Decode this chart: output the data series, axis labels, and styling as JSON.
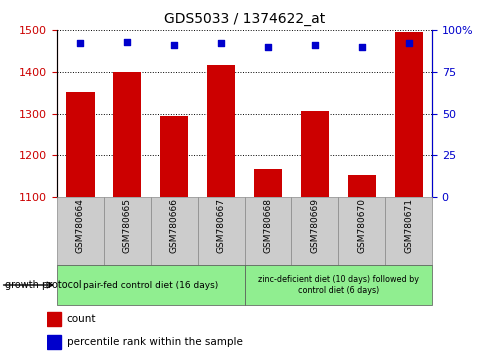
{
  "title": "GDS5033 / 1374622_at",
  "samples": [
    "GSM780664",
    "GSM780665",
    "GSM780666",
    "GSM780667",
    "GSM780668",
    "GSM780669",
    "GSM780670",
    "GSM780671"
  ],
  "counts": [
    1352,
    1400,
    1295,
    1415,
    1167,
    1305,
    1152,
    1495
  ],
  "percentiles": [
    92,
    93,
    91,
    92,
    90,
    91,
    90,
    92
  ],
  "ylim_left": [
    1100,
    1500
  ],
  "ylim_right": [
    0,
    100
  ],
  "yticks_left": [
    1100,
    1200,
    1300,
    1400,
    1500
  ],
  "yticks_right": [
    0,
    25,
    50,
    75,
    100
  ],
  "bar_color": "#cc0000",
  "dot_color": "#0000cc",
  "group1_label": "pair-fed control diet (16 days)",
  "group2_label": "zinc-deficient diet (10 days) followed by\ncontrol diet (6 days)",
  "group1_n": 4,
  "group2_n": 4,
  "group_color": "#90ee90",
  "protocol_label": "growth protocol",
  "grid_color": "#000000",
  "left_tick_color": "#cc0000",
  "right_tick_color": "#0000cc",
  "xtick_bg": "#cccccc",
  "legend_count_label": "count",
  "legend_pct_label": "percentile rank within the sample"
}
